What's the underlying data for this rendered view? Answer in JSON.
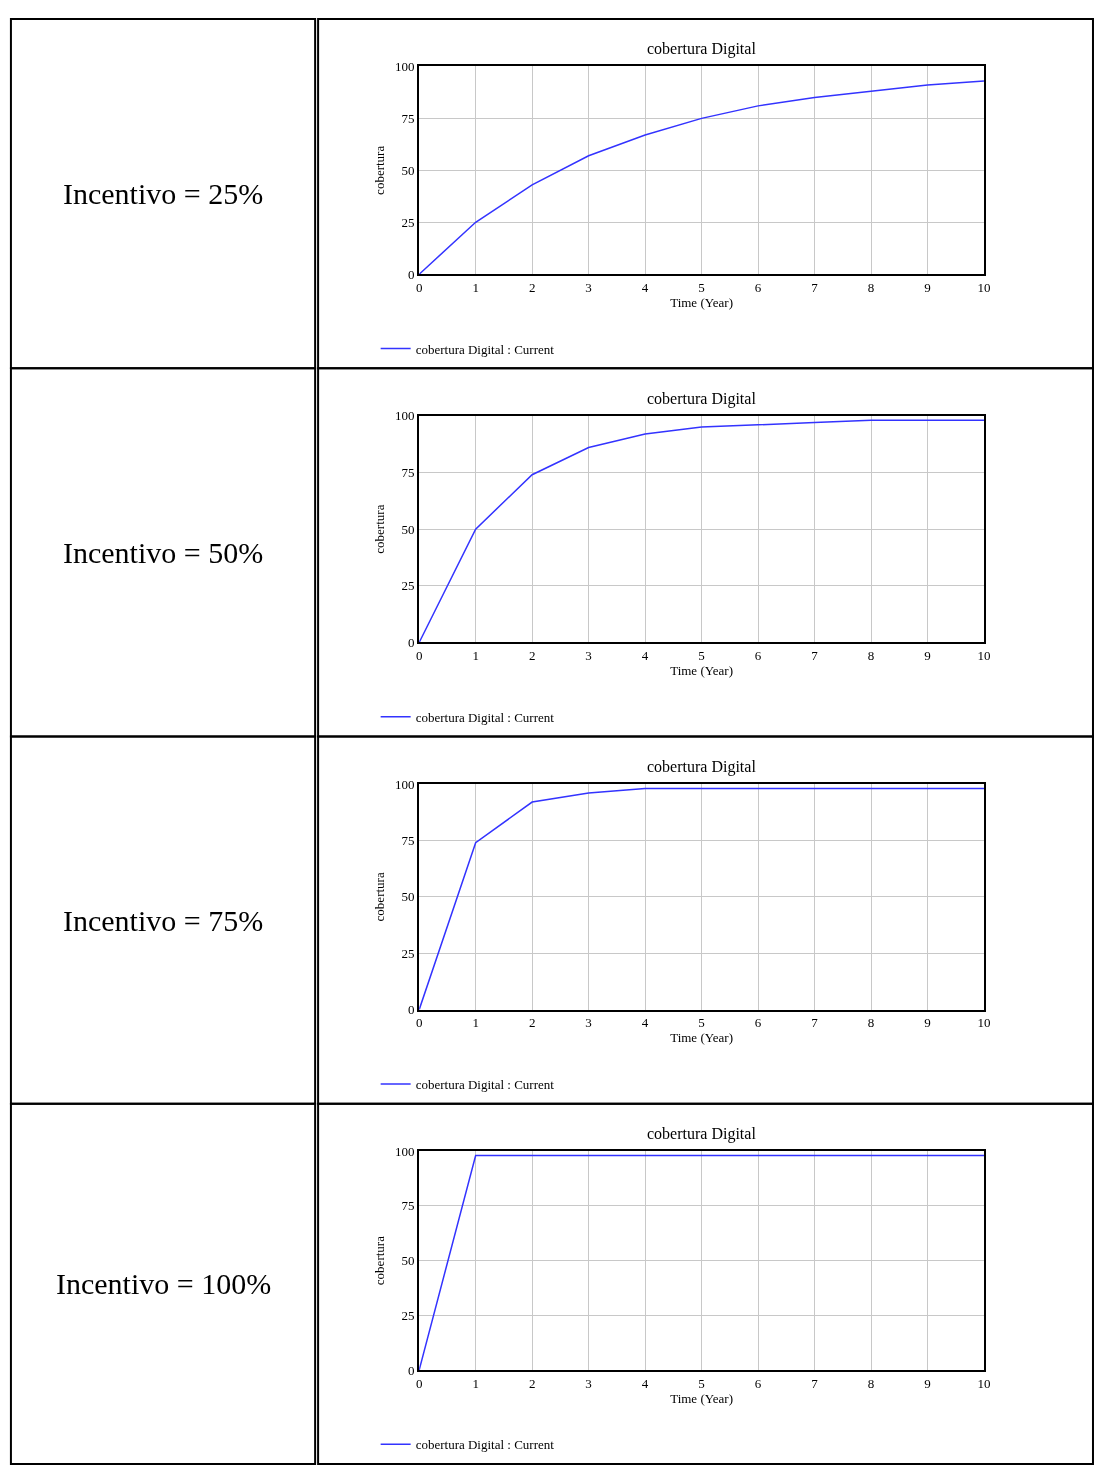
{
  "chart_data": [
    {
      "type": "other",
      "title": "Incentivo = 25%"
    },
    {
      "type": "line",
      "title": "cobertura Digital",
      "xlabel": "Time (Year)",
      "ylabel": "cobertura",
      "x": [
        0,
        1,
        2,
        3,
        4,
        5,
        6,
        7,
        8,
        9,
        10
      ],
      "xlim": [
        0,
        10
      ],
      "xticks": [
        0,
        1,
        2,
        3,
        4,
        5,
        6,
        7,
        8,
        9,
        10
      ],
      "ylim": [
        0,
        100
      ],
      "yticks": [
        0,
        25,
        50,
        75,
        100
      ],
      "grid": true,
      "legend": "bottom left",
      "series": [
        {
          "name": "cobertura Digital : Current",
          "color": "#3333ff",
          "values": [
            0,
            25,
            43,
            57,
            67,
            75,
            81,
            85,
            88,
            91,
            93
          ]
        }
      ]
    },
    {
      "type": "other",
      "title": "Incentivo = 50%"
    },
    {
      "type": "line",
      "title": "cobertura Digital",
      "xlabel": "Time (Year)",
      "ylabel": "cobertura",
      "x": [
        0,
        1,
        2,
        3,
        4,
        5,
        6,
        7,
        8,
        9,
        10
      ],
      "xlim": [
        0,
        10
      ],
      "xticks": [
        0,
        1,
        2,
        3,
        4,
        5,
        6,
        7,
        8,
        9,
        10
      ],
      "ylim": [
        0,
        100
      ],
      "yticks": [
        0,
        25,
        50,
        75,
        100
      ],
      "grid": true,
      "legend": "bottom left",
      "series": [
        {
          "name": "cobertura Digital : Current",
          "color": "#3333ff",
          "values": [
            0,
            50,
            74,
            86,
            92,
            95,
            96,
            97,
            98,
            98,
            98
          ]
        }
      ]
    },
    {
      "type": "other",
      "title": "Incentivo = 75%"
    },
    {
      "type": "line",
      "title": "cobertura Digital",
      "xlabel": "Time (Year)",
      "ylabel": "cobertura",
      "x": [
        0,
        1,
        2,
        3,
        4,
        5,
        6,
        7,
        8,
        9,
        10
      ],
      "xlim": [
        0,
        10
      ],
      "xticks": [
        0,
        1,
        2,
        3,
        4,
        5,
        6,
        7,
        8,
        9,
        10
      ],
      "ylim": [
        0,
        100
      ],
      "yticks": [
        0,
        25,
        50,
        75,
        100
      ],
      "grid": true,
      "legend": "bottom left",
      "series": [
        {
          "name": "cobertura Digital : Current",
          "color": "#3333ff",
          "values": [
            0,
            74,
            92,
            96,
            98,
            98,
            98,
            98,
            98,
            98,
            98
          ]
        }
      ]
    },
    {
      "type": "other",
      "title": "Incentivo = 100%"
    },
    {
      "type": "line",
      "title": "cobertura Digital",
      "xlabel": "Time (Year)",
      "ylabel": "cobertura",
      "x": [
        0,
        1,
        2,
        3,
        4,
        5,
        6,
        7,
        8,
        9,
        10
      ],
      "xlim": [
        0,
        10
      ],
      "xticks": [
        0,
        1,
        2,
        3,
        4,
        5,
        6,
        7,
        8,
        9,
        10
      ],
      "ylim": [
        0,
        100
      ],
      "yticks": [
        0,
        25,
        50,
        75,
        100
      ],
      "grid": true,
      "legend": "bottom left",
      "series": [
        {
          "name": "cobertura Digital : Current",
          "color": "#3333ff",
          "values": [
            0,
            98,
            98,
            98,
            98,
            98,
            98,
            98,
            98,
            98,
            98
          ]
        }
      ]
    }
  ]
}
